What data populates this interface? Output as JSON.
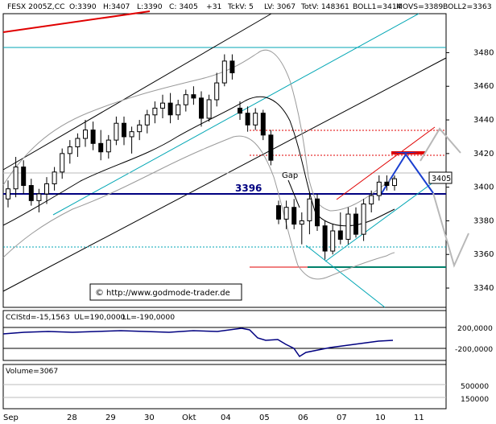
{
  "header": {
    "symbol": "FESX 2005Z,CC",
    "open": "O:3390",
    "high": "H:3407",
    "low": "L:3390",
    "close": "C: 3405",
    "change": "+31",
    "tick_volume": "TckV: 5",
    "last_volume": "LV: 3067",
    "total_volume": "TotV: 148361",
    "boll1": "BOLL1=3414",
    "movs": "MOVS=3389",
    "boll2": "BOLL2=3363"
  },
  "annotations": {
    "level_label": "3396",
    "gap_label": "Gap",
    "copyright_symbol": "©",
    "website": "http://www.godmode-trader.de",
    "price_tag": "3405"
  },
  "cci_panel": {
    "label": "CCIStd=-15,1563",
    "ul": "UL=190,0000",
    "ll": "LL=-190,0000",
    "tick_upper": "200,0000",
    "tick_lower": "-200,0000"
  },
  "volume_panel": {
    "label": "Volume=3067",
    "tick_upper": "500000",
    "tick_lower": "150000"
  },
  "colors": {
    "background": "#ffffff",
    "candles": "#000000",
    "level_line": "#000080",
    "channel_teal": "#00a6b4",
    "channel_black": "#000000",
    "bollinger": "#9a9a9a",
    "red_line": "#e00000",
    "projection_blue": "#1a3fd0",
    "projection_gray": "#b8b8b8",
    "cci_line": "#000080",
    "support_teal": "#00806a"
  },
  "chart_data": {
    "type": "candlestick",
    "y_axis": {
      "ticks": [
        3340,
        3360,
        3380,
        3400,
        3420,
        3440,
        3460,
        3480
      ],
      "range": [
        3332,
        3500
      ]
    },
    "x_axis": {
      "ticks": [
        "Sep",
        "28",
        "29",
        "30",
        "Okt",
        "04",
        "05",
        "06",
        "07",
        "10",
        "11"
      ]
    },
    "horizontal_levels": [
      {
        "name": "3396",
        "value": 3396
      },
      {
        "name": "gap-upper",
        "value": 3431
      },
      {
        "name": "gap-lower",
        "value": 3417
      },
      {
        "name": "low",
        "value": 3356
      }
    ],
    "last_price": 3405,
    "indicators": {
      "BOLL1": 3414,
      "MOVS": 3389,
      "BOLL2": 3363,
      "CCI": -15.1563,
      "CCI_UL": 190,
      "CCI_LL": -190,
      "Volume": 3067
    },
    "candles": [
      {
        "day": "Sep",
        "o": 3393,
        "h": 3404,
        "l": 3388,
        "c": 3399
      },
      {
        "day": "Sep",
        "o": 3399,
        "h": 3418,
        "l": 3394,
        "c": 3412
      },
      {
        "day": "Sep",
        "o": 3412,
        "h": 3416,
        "l": 3396,
        "c": 3401
      },
      {
        "day": "Sep",
        "o": 3401,
        "h": 3405,
        "l": 3389,
        "c": 3392
      },
      {
        "day": "28",
        "o": 3392,
        "h": 3399,
        "l": 3385,
        "c": 3396
      },
      {
        "day": "28",
        "o": 3396,
        "h": 3406,
        "l": 3390,
        "c": 3402
      },
      {
        "day": "28",
        "o": 3402,
        "h": 3412,
        "l": 3398,
        "c": 3409
      },
      {
        "day": "28",
        "o": 3409,
        "h": 3423,
        "l": 3405,
        "c": 3420
      },
      {
        "day": "28",
        "o": 3420,
        "h": 3428,
        "l": 3414,
        "c": 3424
      },
      {
        "day": "28",
        "o": 3424,
        "h": 3432,
        "l": 3418,
        "c": 3429
      },
      {
        "day": "29",
        "o": 3429,
        "h": 3440,
        "l": 3424,
        "c": 3434
      },
      {
        "day": "29",
        "o": 3434,
        "h": 3439,
        "l": 3422,
        "c": 3426
      },
      {
        "day": "29",
        "o": 3426,
        "h": 3434,
        "l": 3416,
        "c": 3421
      },
      {
        "day": "29",
        "o": 3421,
        "h": 3431,
        "l": 3417,
        "c": 3428
      },
      {
        "day": "29",
        "o": 3428,
        "h": 3442,
        "l": 3425,
        "c": 3438
      },
      {
        "day": "30",
        "o": 3438,
        "h": 3442,
        "l": 3425,
        "c": 3430
      },
      {
        "day": "30",
        "o": 3430,
        "h": 3436,
        "l": 3420,
        "c": 3433
      },
      {
        "day": "30",
        "o": 3433,
        "h": 3440,
        "l": 3428,
        "c": 3437
      },
      {
        "day": "30",
        "o": 3437,
        "h": 3446,
        "l": 3432,
        "c": 3443
      },
      {
        "day": "Okt",
        "o": 3443,
        "h": 3451,
        "l": 3438,
        "c": 3447
      },
      {
        "day": "Okt",
        "o": 3447,
        "h": 3455,
        "l": 3441,
        "c": 3450
      },
      {
        "day": "Okt",
        "o": 3450,
        "h": 3456,
        "l": 3438,
        "c": 3443
      },
      {
        "day": "Okt",
        "o": 3443,
        "h": 3452,
        "l": 3440,
        "c": 3449
      },
      {
        "day": "04",
        "o": 3449,
        "h": 3458,
        "l": 3445,
        "c": 3455
      },
      {
        "day": "04",
        "o": 3455,
        "h": 3460,
        "l": 3449,
        "c": 3453
      },
      {
        "day": "04",
        "o": 3453,
        "h": 3457,
        "l": 3436,
        "c": 3441
      },
      {
        "day": "04",
        "o": 3441,
        "h": 3455,
        "l": 3439,
        "c": 3452
      },
      {
        "day": "04",
        "o": 3452,
        "h": 3468,
        "l": 3448,
        "c": 3462
      },
      {
        "day": "05",
        "o": 3462,
        "h": 3479,
        "l": 3460,
        "c": 3475
      },
      {
        "day": "05",
        "o": 3475,
        "h": 3479,
        "l": 3464,
        "c": 3468
      },
      {
        "day": "05",
        "o": 3447,
        "h": 3451,
        "l": 3440,
        "c": 3444
      },
      {
        "day": "05",
        "o": 3444,
        "h": 3448,
        "l": 3433,
        "c": 3437
      },
      {
        "day": "05",
        "o": 3437,
        "h": 3447,
        "l": 3434,
        "c": 3444
      },
      {
        "day": "05",
        "o": 3444,
        "h": 3446,
        "l": 3428,
        "c": 3431
      },
      {
        "day": "05",
        "o": 3431,
        "h": 3434,
        "l": 3413,
        "c": 3416
      },
      {
        "day": "06",
        "o": 3389,
        "h": 3392,
        "l": 3378,
        "c": 3381
      },
      {
        "day": "06",
        "o": 3381,
        "h": 3392,
        "l": 3375,
        "c": 3388
      },
      {
        "day": "06",
        "o": 3388,
        "h": 3393,
        "l": 3375,
        "c": 3378
      },
      {
        "day": "06",
        "o": 3378,
        "h": 3385,
        "l": 3366,
        "c": 3380
      },
      {
        "day": "06",
        "o": 3380,
        "h": 3397,
        "l": 3372,
        "c": 3393
      },
      {
        "day": "07",
        "o": 3393,
        "h": 3396,
        "l": 3374,
        "c": 3377
      },
      {
        "day": "07",
        "o": 3377,
        "h": 3380,
        "l": 3357,
        "c": 3362
      },
      {
        "day": "07",
        "o": 3362,
        "h": 3378,
        "l": 3360,
        "c": 3374
      },
      {
        "day": "07",
        "o": 3374,
        "h": 3385,
        "l": 3366,
        "c": 3369
      },
      {
        "day": "07",
        "o": 3369,
        "h": 3388,
        "l": 3366,
        "c": 3384
      },
      {
        "day": "07",
        "o": 3384,
        "h": 3388,
        "l": 3370,
        "c": 3372
      },
      {
        "day": "10",
        "o": 3372,
        "h": 3393,
        "l": 3368,
        "c": 3390
      },
      {
        "day": "10",
        "o": 3390,
        "h": 3398,
        "l": 3385,
        "c": 3395
      },
      {
        "day": "10",
        "o": 3395,
        "h": 3407,
        "l": 3392,
        "c": 3403
      },
      {
        "day": "10",
        "o": 3403,
        "h": 3407,
        "l": 3398,
        "c": 3401
      },
      {
        "day": "10",
        "o": 3401,
        "h": 3407,
        "l": 3398,
        "c": 3405
      }
    ]
  }
}
